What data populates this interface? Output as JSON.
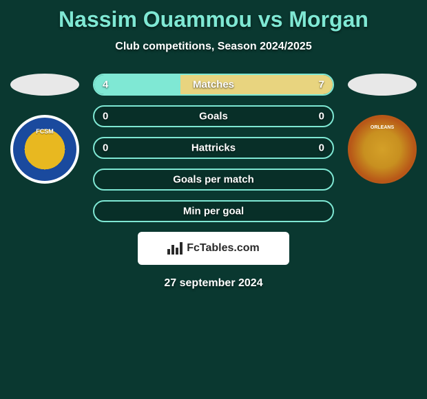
{
  "title": "Nassim Ouammou vs Morgan",
  "subtitle": "Club competitions, Season 2024/2025",
  "date": "27 september 2024",
  "footer_brand": "FcTables.com",
  "colors": {
    "background": "#0a3830",
    "accent": "#7fe8d4",
    "text": "#ffffff",
    "bar_border": "#7fe8d4",
    "fill_left": "#7fe8d4",
    "fill_right": "#e8d47f",
    "footer_bg": "#ffffff",
    "footer_text": "#2a2a2a"
  },
  "bars": [
    {
      "label": "Matches",
      "left_value": "4",
      "right_value": "7",
      "left_pct": 36,
      "right_pct": 64
    },
    {
      "label": "Goals",
      "left_value": "0",
      "right_value": "0",
      "left_pct": 0,
      "right_pct": 0
    },
    {
      "label": "Hattricks",
      "left_value": "0",
      "right_value": "0",
      "left_pct": 0,
      "right_pct": 0
    },
    {
      "label": "Goals per match",
      "left_value": "",
      "right_value": "",
      "left_pct": 0,
      "right_pct": 0
    },
    {
      "label": "Min per goal",
      "left_value": "",
      "right_value": "",
      "left_pct": 0,
      "right_pct": 0
    }
  ],
  "team_left": {
    "badge_label": "FCSM",
    "badge_colors": [
      "#e8b820",
      "#1a4a9e"
    ]
  },
  "team_right": {
    "badge_label": "ORLEANS",
    "badge_colors": [
      "#d4a028",
      "#a04010"
    ]
  },
  "typography": {
    "title_fontsize": 32,
    "subtitle_fontsize": 16,
    "bar_label_fontsize": 15,
    "date_fontsize": 16
  }
}
